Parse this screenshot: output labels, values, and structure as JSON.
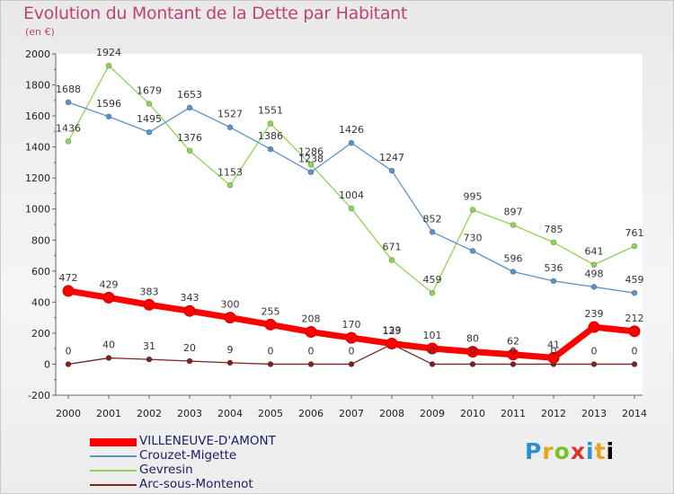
{
  "chart_data": {
    "type": "line",
    "title": "Evolution du Montant de la Dette par Habitant",
    "subtitle": "(en €)",
    "x": [
      "2000",
      "2001",
      "2002",
      "2003",
      "2004",
      "2005",
      "2006",
      "2007",
      "2008",
      "2009",
      "2010",
      "2011",
      "2012",
      "2013",
      "2014"
    ],
    "ylim": [
      -200,
      2000
    ],
    "yticks": [
      -200,
      0,
      200,
      400,
      600,
      800,
      1000,
      1200,
      1400,
      1600,
      1800,
      2000
    ],
    "grid": false,
    "legend_position": "bottom-left",
    "series": [
      {
        "name": "VILLENEUVE-D'AMONT",
        "color": "#ff0000",
        "values": [
          472,
          429,
          383,
          343,
          300,
          255,
          208,
          170,
          133,
          101,
          80,
          62,
          41,
          239,
          212
        ]
      },
      {
        "name": "Crouzet-Migette",
        "color": "#5b93c9",
        "values": [
          1688,
          1596,
          1495,
          1653,
          1527,
          1386,
          1238,
          1426,
          1247,
          852,
          730,
          596,
          536,
          498,
          459
        ]
      },
      {
        "name": "Gevresin",
        "color": "#8ed357",
        "values": [
          1436,
          1924,
          1679,
          1376,
          1153,
          1551,
          1286,
          1004,
          671,
          459,
          995,
          897,
          785,
          641,
          761
        ]
      },
      {
        "name": "Arc-sous-Montenot",
        "color": "#7a2424",
        "values": [
          0,
          40,
          31,
          20,
          9,
          0,
          0,
          0,
          129,
          0,
          0,
          0,
          0,
          0,
          0
        ]
      }
    ]
  },
  "logo_text": "Proxiti"
}
